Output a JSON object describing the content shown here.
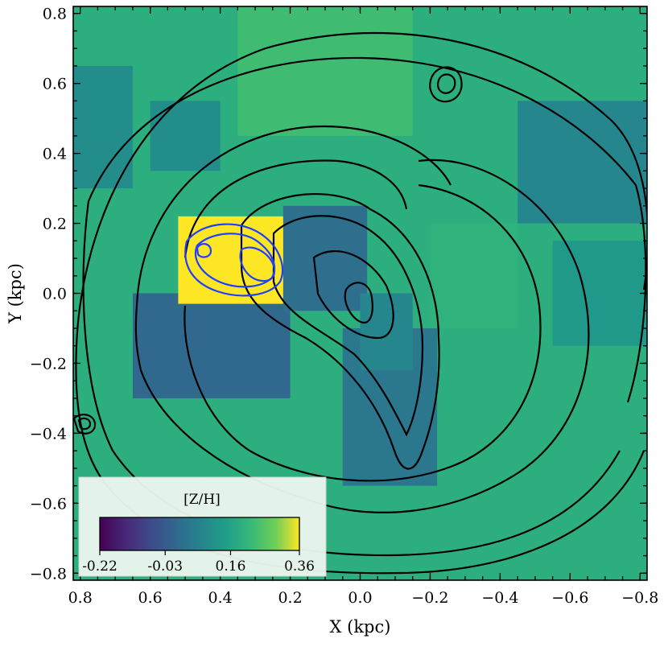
{
  "chart_data": {
    "type": "heatmap",
    "title": "",
    "xlabel": "X (kpc)",
    "ylabel": "Y (kpc)",
    "xlim": [
      0.82,
      -0.82
    ],
    "ylim": [
      -0.82,
      0.82
    ],
    "x_ticks": [
      0.8,
      0.6,
      0.4,
      0.2,
      0.0,
      -0.2,
      -0.4,
      -0.6,
      -0.8
    ],
    "x_tick_labels": [
      "0.8",
      "0.6",
      "0.4",
      "0.2",
      "0.0",
      "−0.2",
      "−0.4",
      "−0.6",
      "−0.8"
    ],
    "y_ticks": [
      0.8,
      0.6,
      0.4,
      0.2,
      0.0,
      -0.2,
      -0.4,
      -0.6,
      -0.8
    ],
    "y_tick_labels": [
      "0.8",
      "0.6",
      "0.4",
      "0.2",
      "0.0",
      "−0.2",
      "−0.4",
      "−0.6",
      "−0.8"
    ],
    "colorbar": {
      "label": "[Z/H]",
      "cmap": "viridis",
      "vmin": -0.22,
      "vmax": 0.36,
      "tick_values": [
        -0.22,
        -0.03,
        0.16,
        0.36
      ],
      "tick_labels": [
        "-0.22",
        "-0.03",
        "0.16",
        "0.36"
      ],
      "location": "lower-left"
    },
    "regions": [
      {
        "x": [
          0.82,
          -0.82
        ],
        "y": [
          -0.82,
          0.82
        ],
        "value": 0.19
      },
      {
        "x": [
          0.35,
          -0.15
        ],
        "y": [
          0.45,
          0.82
        ],
        "value": 0.23
      },
      {
        "x": [
          0.82,
          0.45
        ],
        "y": [
          -0.82,
          -0.45
        ],
        "value": 0.19
      },
      {
        "x": [
          0.82,
          0.65
        ],
        "y": [
          0.3,
          0.65
        ],
        "value": 0.1
      },
      {
        "x": [
          0.6,
          0.4
        ],
        "y": [
          0.35,
          0.55
        ],
        "value": 0.1
      },
      {
        "x": [
          -0.45,
          -0.82
        ],
        "y": [
          0.2,
          0.55
        ],
        "value": 0.08
      },
      {
        "x": [
          -0.55,
          -0.82
        ],
        "y": [
          -0.15,
          0.15
        ],
        "value": 0.13
      },
      {
        "x": [
          -0.2,
          -0.45
        ],
        "y": [
          -0.1,
          0.2
        ],
        "value": 0.2
      },
      {
        "x": [
          0.65,
          0.2
        ],
        "y": [
          -0.3,
          0.0
        ],
        "value": 0.0
      },
      {
        "x": [
          0.22,
          -0.02
        ],
        "y": [
          -0.05,
          0.25
        ],
        "value": 0.02
      },
      {
        "x": [
          0.05,
          -0.22
        ],
        "y": [
          -0.55,
          -0.1
        ],
        "value": 0.04
      },
      {
        "x": [
          0.0,
          -0.15
        ],
        "y": [
          -0.22,
          0.0
        ],
        "value": 0.08
      },
      {
        "x": [
          0.52,
          0.22
        ],
        "y": [
          -0.03,
          0.22
        ],
        "value": 0.36
      }
    ],
    "contour_color": "#000000",
    "highlight_contour_color": "#1f3fff"
  }
}
